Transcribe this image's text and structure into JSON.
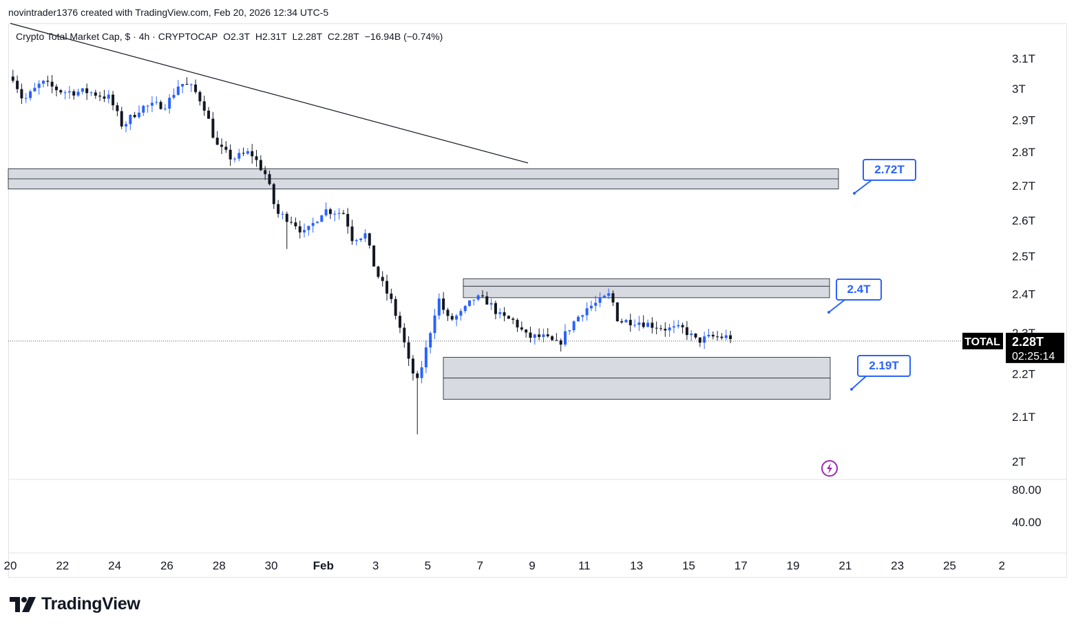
{
  "header": {
    "attribution": "novintrader1376 created with TradingView.com, Feb 20, 2026 12:34 UTC-5"
  },
  "legend": {
    "title": "Crypto Total Market Cap, $ · 4h · CRYPTOCAP",
    "open_label": "O",
    "open": "2.3T",
    "high_label": "H",
    "high": "2.31T",
    "low_label": "L",
    "low": "2.28T",
    "close_label": "C",
    "close": "2.28T",
    "change": "−16.94B (−0.74%)"
  },
  "price_badge": {
    "symbol": "TOTAL",
    "price": "2.28T",
    "countdown": "02:25:14"
  },
  "annotations": [
    {
      "label": "2.72T",
      "value": 2.72
    },
    {
      "label": "2.4T",
      "value": 2.4
    },
    {
      "label": "2.19T",
      "value": 2.19
    }
  ],
  "brand": {
    "name": "TradingView"
  },
  "colors": {
    "up_candle": "#2962ff",
    "down_candle": "#131722",
    "zone_fill": "#d1d4dc",
    "annotation": "#2962ff",
    "badge_bg": "#000000",
    "alert_icon": "#9c27b0"
  },
  "chart_data": {
    "type": "candlestick",
    "timeframe": "4h",
    "x_axis": {
      "tick_labels": [
        "20",
        "22",
        "24",
        "26",
        "28",
        "30",
        "Feb",
        "3",
        "5",
        "7",
        "9",
        "11",
        "13",
        "15",
        "17",
        "19",
        "21",
        "23",
        "25",
        "2"
      ]
    },
    "y_axis": {
      "scale": "log",
      "tick_labels": [
        "3.1T",
        "3T",
        "2.9T",
        "2.8T",
        "2.7T",
        "2.6T",
        "2.5T",
        "2.4T",
        "2.3T",
        "2.2T",
        "2.1T",
        "2T"
      ],
      "tick_values": [
        3.1,
        3.0,
        2.9,
        2.8,
        2.7,
        2.6,
        2.5,
        2.4,
        2.3,
        2.2,
        2.1,
        2.0
      ]
    },
    "indicator_pane": {
      "tick_labels": [
        "80.00",
        "40.00"
      ]
    },
    "last_price": 2.28,
    "zones": [
      {
        "from_x": "Jan 20",
        "to_x": "Feb 20",
        "low": 2.69,
        "high": 2.75,
        "mid": 2.72
      },
      {
        "from_x": "Feb 6",
        "to_x": "Feb 20",
        "low": 2.39,
        "high": 2.44,
        "mid": 2.42
      },
      {
        "from_x": "Feb 5",
        "to_x": "Feb 20",
        "low": 2.14,
        "high": 2.24,
        "mid": 2.19
      }
    ],
    "trendline": {
      "start": {
        "x": "Jan 20",
        "y": 3.15
      },
      "end": {
        "x": "Feb 8",
        "y": 2.8
      }
    },
    "waypoints": [
      {
        "d": 0.1,
        "p": 3.04
      },
      {
        "d": 0.5,
        "p": 2.96
      },
      {
        "d": 1.2,
        "p": 3.02
      },
      {
        "d": 2.0,
        "p": 2.99
      },
      {
        "d": 3.0,
        "p": 2.99
      },
      {
        "d": 3.8,
        "p": 2.97
      },
      {
        "d": 4.3,
        "p": 2.88
      },
      {
        "d": 5.0,
        "p": 2.94
      },
      {
        "d": 6.0,
        "p": 2.95
      },
      {
        "d": 6.5,
        "p": 3.02
      },
      {
        "d": 7.0,
        "p": 3.0
      },
      {
        "d": 7.4,
        "p": 2.95
      },
      {
        "d": 7.9,
        "p": 2.82
      },
      {
        "d": 8.5,
        "p": 2.78
      },
      {
        "d": 9.2,
        "p": 2.8
      },
      {
        "d": 9.8,
        "p": 2.73
      },
      {
        "d": 10.2,
        "p": 2.62
      },
      {
        "d": 10.8,
        "p": 2.6
      },
      {
        "d": 11.3,
        "p": 2.56
      },
      {
        "d": 12.0,
        "p": 2.63
      },
      {
        "d": 12.8,
        "p": 2.62
      },
      {
        "d": 13.1,
        "p": 2.55
      },
      {
        "d": 13.6,
        "p": 2.56
      },
      {
        "d": 14.0,
        "p": 2.46
      },
      {
        "d": 14.6,
        "p": 2.38
      },
      {
        "d": 15.0,
        "p": 2.3
      },
      {
        "d": 15.3,
        "p": 2.22
      },
      {
        "d": 15.6,
        "p": 2.18
      },
      {
        "d": 15.9,
        "p": 2.25
      },
      {
        "d": 16.4,
        "p": 2.39
      },
      {
        "d": 16.8,
        "p": 2.33
      },
      {
        "d": 17.3,
        "p": 2.35
      },
      {
        "d": 17.8,
        "p": 2.39
      },
      {
        "d": 18.3,
        "p": 2.38
      },
      {
        "d": 18.8,
        "p": 2.34
      },
      {
        "d": 19.3,
        "p": 2.33
      },
      {
        "d": 19.8,
        "p": 2.29
      },
      {
        "d": 20.4,
        "p": 2.29
      },
      {
        "d": 21.0,
        "p": 2.27
      },
      {
        "d": 21.5,
        "p": 2.32
      },
      {
        "d": 22.0,
        "p": 2.36
      },
      {
        "d": 22.6,
        "p": 2.38
      },
      {
        "d": 23.0,
        "p": 2.4
      },
      {
        "d": 23.3,
        "p": 2.33
      },
      {
        "d": 24.0,
        "p": 2.33
      },
      {
        "d": 24.6,
        "p": 2.32
      },
      {
        "d": 25.2,
        "p": 2.31
      },
      {
        "d": 25.8,
        "p": 2.31
      },
      {
        "d": 26.3,
        "p": 2.28
      },
      {
        "d": 26.9,
        "p": 2.29
      },
      {
        "d": 27.6,
        "p": 2.29
      }
    ]
  }
}
